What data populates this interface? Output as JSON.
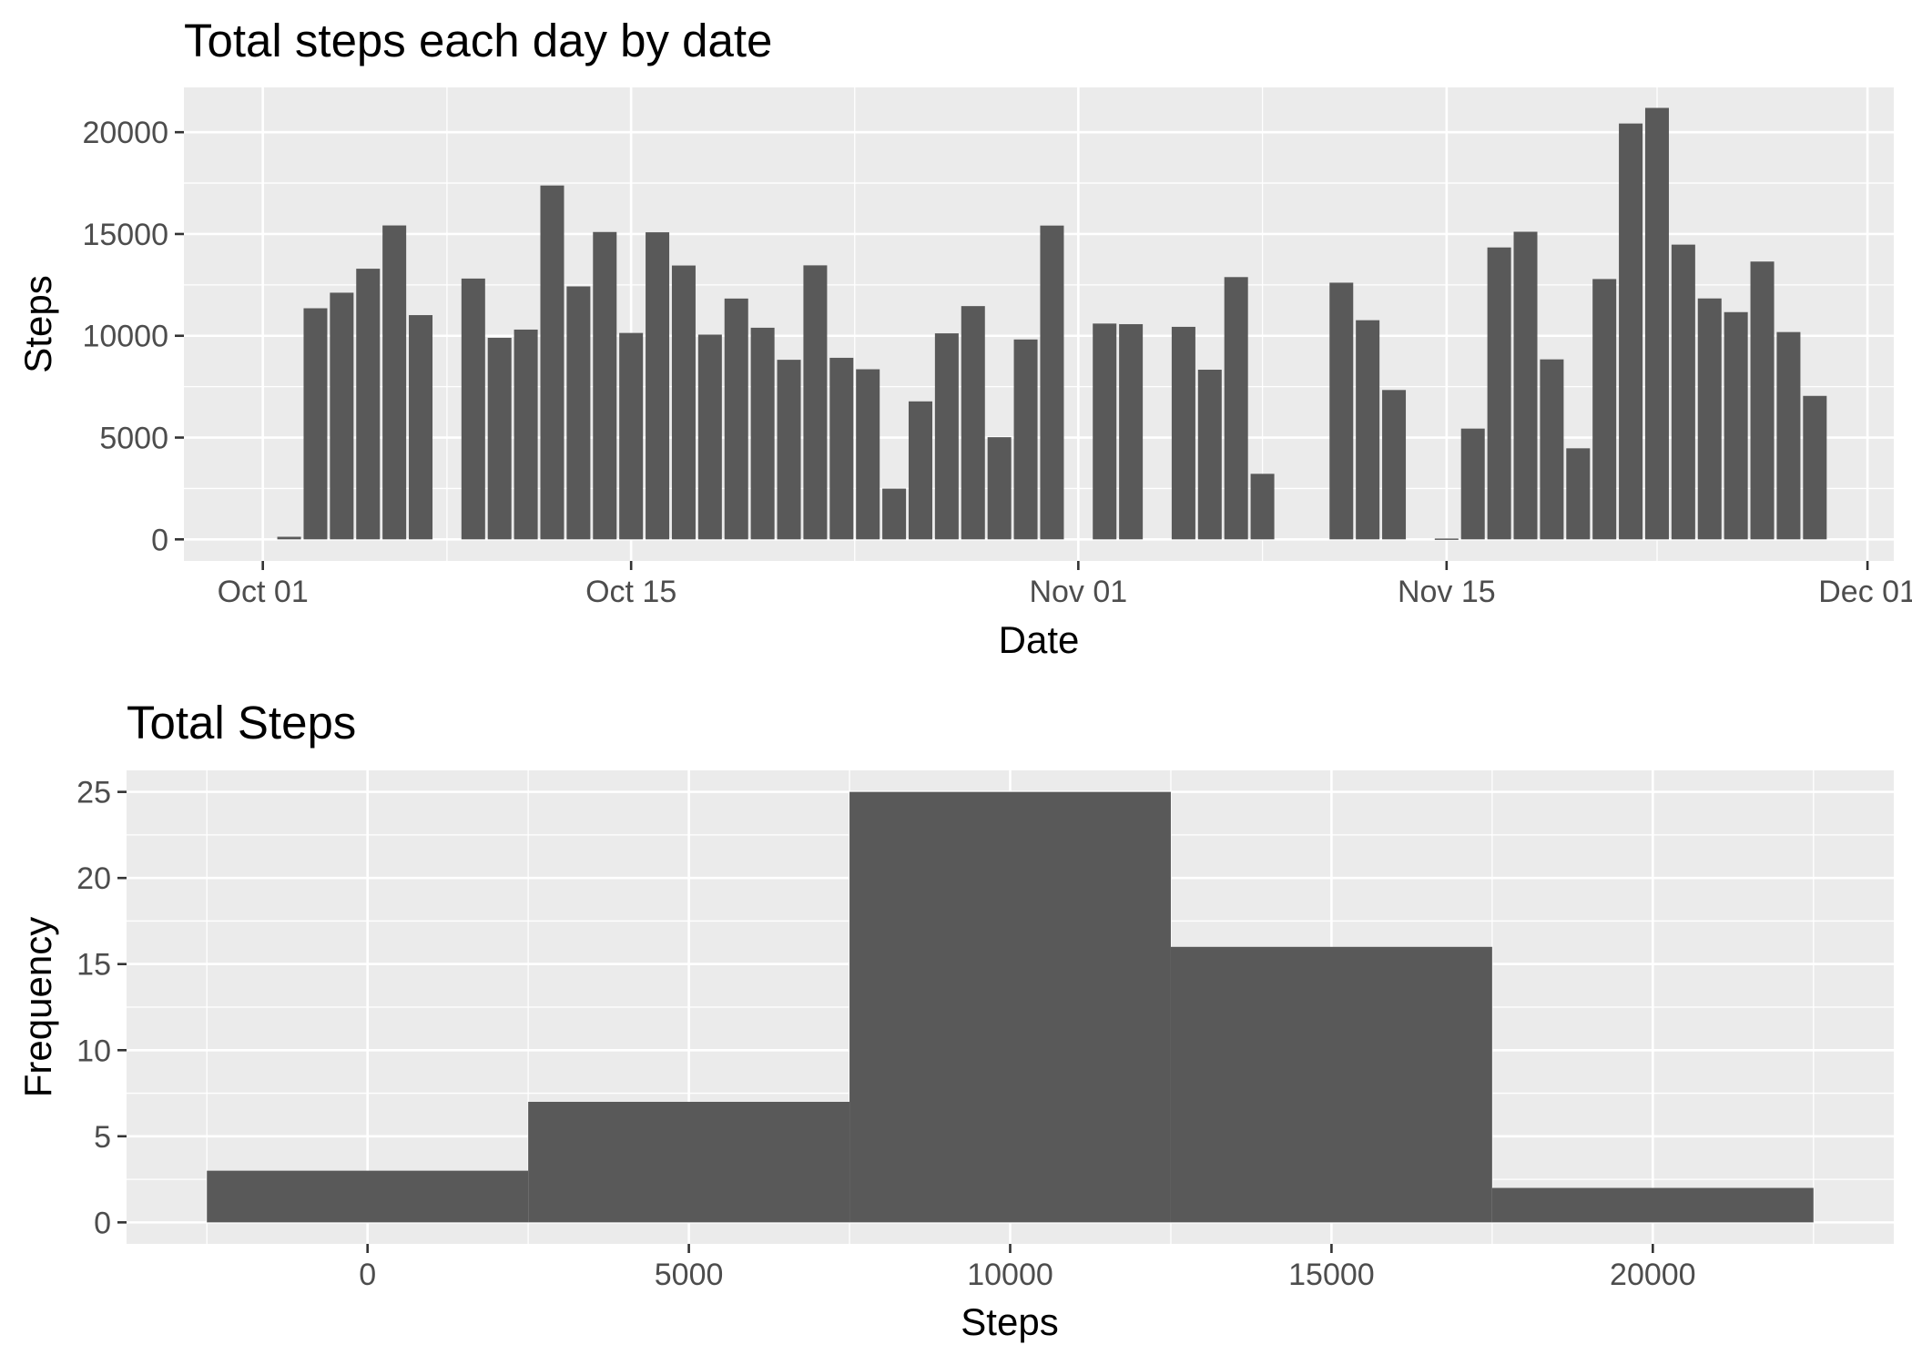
{
  "chart_data": [
    {
      "type": "bar",
      "title": "Total steps each day by date",
      "xlabel": "Date",
      "ylabel": "Steps",
      "x_ticks": [
        "Oct 01",
        "Oct 15",
        "Nov 01",
        "Nov 15",
        "Dec 01"
      ],
      "y_ticks": [
        "0",
        "5000",
        "10000",
        "15000",
        "20000"
      ],
      "xlim": [
        "2012-09-28",
        "2012-12-02"
      ],
      "ylim": [
        -1060,
        22200
      ],
      "grid": true,
      "color": "#595959",
      "background": "#ebebeb",
      "dates": [
        "2012-10-01",
        "2012-10-02",
        "2012-10-03",
        "2012-10-04",
        "2012-10-05",
        "2012-10-06",
        "2012-10-07",
        "2012-10-08",
        "2012-10-09",
        "2012-10-10",
        "2012-10-11",
        "2012-10-12",
        "2012-10-13",
        "2012-10-14",
        "2012-10-15",
        "2012-10-16",
        "2012-10-17",
        "2012-10-18",
        "2012-10-19",
        "2012-10-20",
        "2012-10-21",
        "2012-10-22",
        "2012-10-23",
        "2012-10-24",
        "2012-10-25",
        "2012-10-26",
        "2012-10-27",
        "2012-10-28",
        "2012-10-29",
        "2012-10-30",
        "2012-10-31",
        "2012-11-01",
        "2012-11-02",
        "2012-11-03",
        "2012-11-04",
        "2012-11-05",
        "2012-11-06",
        "2012-11-07",
        "2012-11-08",
        "2012-11-09",
        "2012-11-10",
        "2012-11-11",
        "2012-11-12",
        "2012-11-13",
        "2012-11-14",
        "2012-11-15",
        "2012-11-16",
        "2012-11-17",
        "2012-11-18",
        "2012-11-19",
        "2012-11-20",
        "2012-11-21",
        "2012-11-22",
        "2012-11-23",
        "2012-11-24",
        "2012-11-25",
        "2012-11-26",
        "2012-11-27",
        "2012-11-28",
        "2012-11-29",
        "2012-11-30"
      ],
      "values": [
        0,
        126,
        11352,
        12116,
        13294,
        15420,
        11015,
        0,
        12811,
        9900,
        10304,
        17382,
        12426,
        15098,
        10139,
        15084,
        13452,
        10056,
        11829,
        10395,
        8821,
        13460,
        8918,
        8355,
        2492,
        6778,
        10119,
        11458,
        5018,
        9819,
        15414,
        0,
        10600,
        10571,
        0,
        10439,
        8334,
        12883,
        3219,
        0,
        0,
        12608,
        10765,
        7336,
        0,
        41,
        5441,
        14339,
        15110,
        8841,
        4472,
        12787,
        20427,
        21194,
        14478,
        11834,
        11162,
        13646,
        10183,
        7047,
        0
      ]
    },
    {
      "type": "bar",
      "subtype": "histogram",
      "title": "Total Steps",
      "xlabel": "Steps",
      "ylabel": "Frequency",
      "x_ticks": [
        "0",
        "5000",
        "10000",
        "15000",
        "20000"
      ],
      "y_ticks": [
        "0",
        "5",
        "10",
        "15",
        "20",
        "25"
      ],
      "xlim": [
        -3750,
        23750
      ],
      "ylim": [
        -1.25,
        26.25
      ],
      "grid": true,
      "color": "#595959",
      "background": "#ebebeb",
      "bins": [
        {
          "from": -2500,
          "to": 2500,
          "count": 3
        },
        {
          "from": 2500,
          "to": 7500,
          "count": 7
        },
        {
          "from": 7500,
          "to": 12500,
          "count": 25
        },
        {
          "from": 12500,
          "to": 17500,
          "count": 16
        },
        {
          "from": 17500,
          "to": 22500,
          "count": 2
        }
      ]
    }
  ]
}
